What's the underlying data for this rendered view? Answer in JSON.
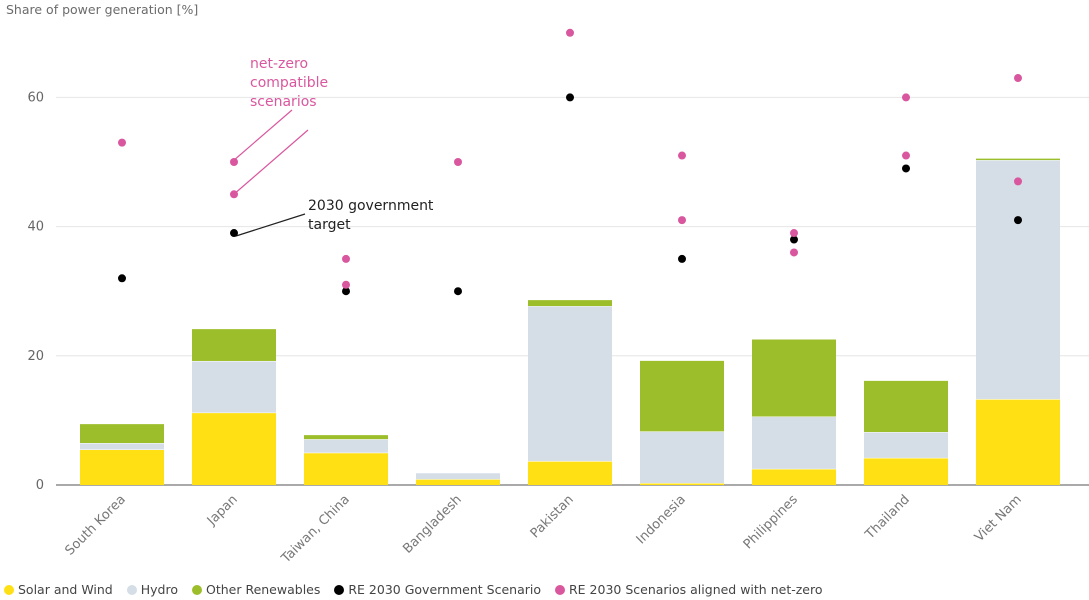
{
  "chart_data": {
    "type": "bar",
    "ylabel": "Share of power generation [%]",
    "ylim": [
      0,
      70
    ],
    "yticks": [
      0,
      20,
      40,
      60
    ],
    "grid": true,
    "legend_position": "bottom",
    "categories": [
      "South Korea",
      "Japan",
      "Taiwan, China",
      "Bangladesh",
      "Pakistan",
      "Indonesia",
      "Philippines",
      "Thailand",
      "Viet Nam"
    ],
    "series": [
      {
        "name": "Solar and Wind",
        "color": "#FFE014",
        "values": [
          5.5,
          11.2,
          5.0,
          0.9,
          3.7,
          0.3,
          2.5,
          4.2,
          13.3
        ]
      },
      {
        "name": "Hydro",
        "color": "#D5DEE6",
        "values": [
          1.0,
          8.0,
          2.1,
          1.0,
          24.0,
          8.0,
          8.1,
          4.0,
          37.0
        ]
      },
      {
        "name": "Other Renewables",
        "color": "#9DBE2B",
        "values": [
          3.0,
          5.0,
          0.7,
          0.0,
          1.0,
          11.0,
          12.0,
          8.0,
          0.3
        ]
      }
    ],
    "scatter_series": [
      {
        "name": "RE 2030 Government Scenario",
        "color": "#000000",
        "points": [
          [
            "South Korea",
            32
          ],
          [
            "Japan",
            39
          ],
          [
            "Taiwan, China",
            30
          ],
          [
            "Bangladesh",
            30
          ],
          [
            "Pakistan",
            60
          ],
          [
            "Indonesia",
            35
          ],
          [
            "Philippines",
            38
          ],
          [
            "Thailand",
            49
          ],
          [
            "Viet Nam",
            41
          ]
        ]
      },
      {
        "name": "RE 2030 Scenarios aligned with net-zero",
        "color": "#D9579E",
        "points": [
          [
            "South Korea",
            53
          ],
          [
            "Japan",
            50
          ],
          [
            "Japan",
            45
          ],
          [
            "Taiwan, China",
            35
          ],
          [
            "Taiwan, China",
            31
          ],
          [
            "Bangladesh",
            50
          ],
          [
            "Pakistan",
            70
          ],
          [
            "Indonesia",
            51
          ],
          [
            "Indonesia",
            41
          ],
          [
            "Philippines",
            39
          ],
          [
            "Philippines",
            36
          ],
          [
            "Thailand",
            60
          ],
          [
            "Thailand",
            51
          ],
          [
            "Viet Nam",
            63
          ],
          [
            "Viet Nam",
            47
          ]
        ]
      }
    ],
    "annotations": [
      {
        "text_lines": [
          "net-zero",
          "compatible",
          "scenarios"
        ],
        "color": "#D9579E"
      },
      {
        "text_lines": [
          "2030 government",
          "target"
        ],
        "color": "#222222"
      }
    ]
  }
}
